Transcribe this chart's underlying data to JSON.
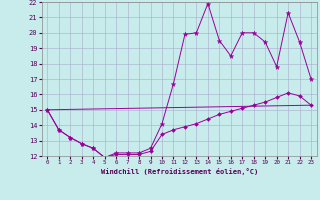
{
  "xlabel": "Windchill (Refroidissement éolien,°C)",
  "background_color": "#c8ecec",
  "line_color": "#990099",
  "grid_color": "#aaaacc",
  "xlim": [
    -0.5,
    23.5
  ],
  "ylim": [
    12,
    22
  ],
  "yticks": [
    12,
    13,
    14,
    15,
    16,
    17,
    18,
    19,
    20,
    21,
    22
  ],
  "xticks": [
    0,
    1,
    2,
    3,
    4,
    5,
    6,
    7,
    8,
    9,
    10,
    11,
    12,
    13,
    14,
    15,
    16,
    17,
    18,
    19,
    20,
    21,
    22,
    23
  ],
  "line1_x": [
    0,
    1,
    2,
    3,
    4,
    5,
    6,
    7,
    8,
    9,
    10,
    11,
    12,
    13,
    14,
    15,
    16,
    17,
    18,
    19,
    20,
    21,
    22,
    23
  ],
  "line1_y": [
    15.0,
    13.7,
    13.2,
    12.8,
    12.5,
    11.9,
    12.2,
    12.2,
    12.2,
    12.5,
    14.1,
    16.7,
    19.9,
    20.0,
    21.9,
    19.5,
    18.5,
    20.0,
    20.0,
    19.4,
    17.8,
    21.3,
    19.4,
    17.0
  ],
  "line2_x": [
    0,
    23
  ],
  "line2_y": [
    15.0,
    15.3
  ],
  "line3_x": [
    0,
    1,
    2,
    3,
    4,
    5,
    6,
    7,
    8,
    9,
    10,
    11,
    12,
    13,
    14,
    15,
    16,
    17,
    18,
    19,
    20,
    21,
    22,
    23
  ],
  "line3_y": [
    15.0,
    13.7,
    13.2,
    12.8,
    12.5,
    11.9,
    12.1,
    12.1,
    12.1,
    12.3,
    13.4,
    13.7,
    13.9,
    14.1,
    14.4,
    14.7,
    14.9,
    15.1,
    15.3,
    15.5,
    15.8,
    16.1,
    15.9,
    15.3
  ]
}
